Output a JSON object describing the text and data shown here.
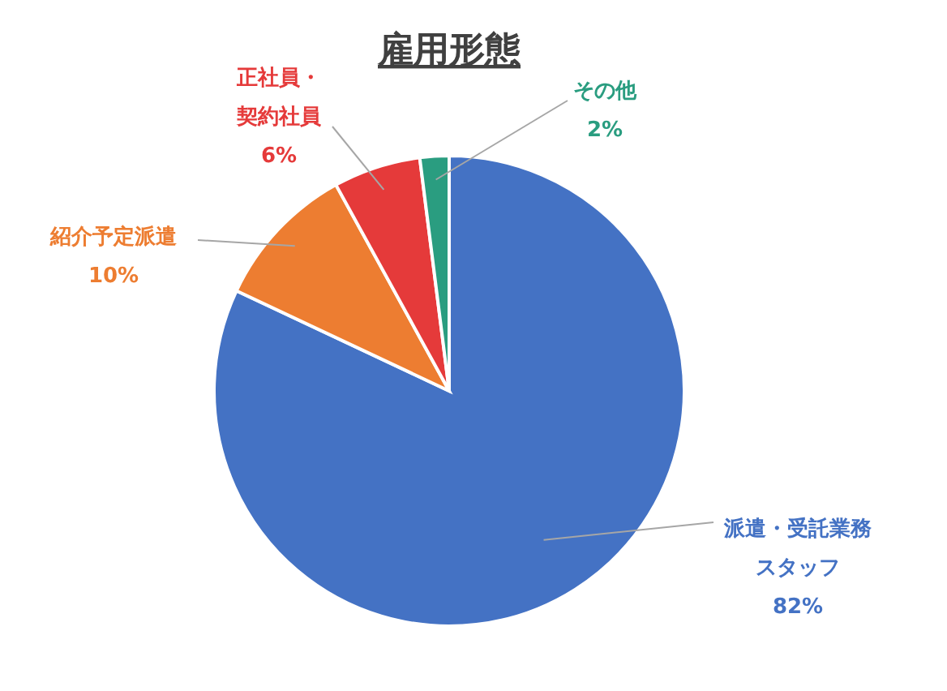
{
  "chart_data": {
    "type": "pie",
    "title": "雇用形態",
    "categories": [
      "派遣・受託業務スタッフ",
      "紹介予定派遣",
      "正社員・契約社員",
      "その他"
    ],
    "values": [
      82,
      10,
      6,
      2
    ],
    "colors": [
      "#4472c4",
      "#ed7d31",
      "#e53a3a",
      "#2a9d80"
    ],
    "value_labels": [
      "82%",
      "10%",
      "6%",
      "2%"
    ]
  }
}
